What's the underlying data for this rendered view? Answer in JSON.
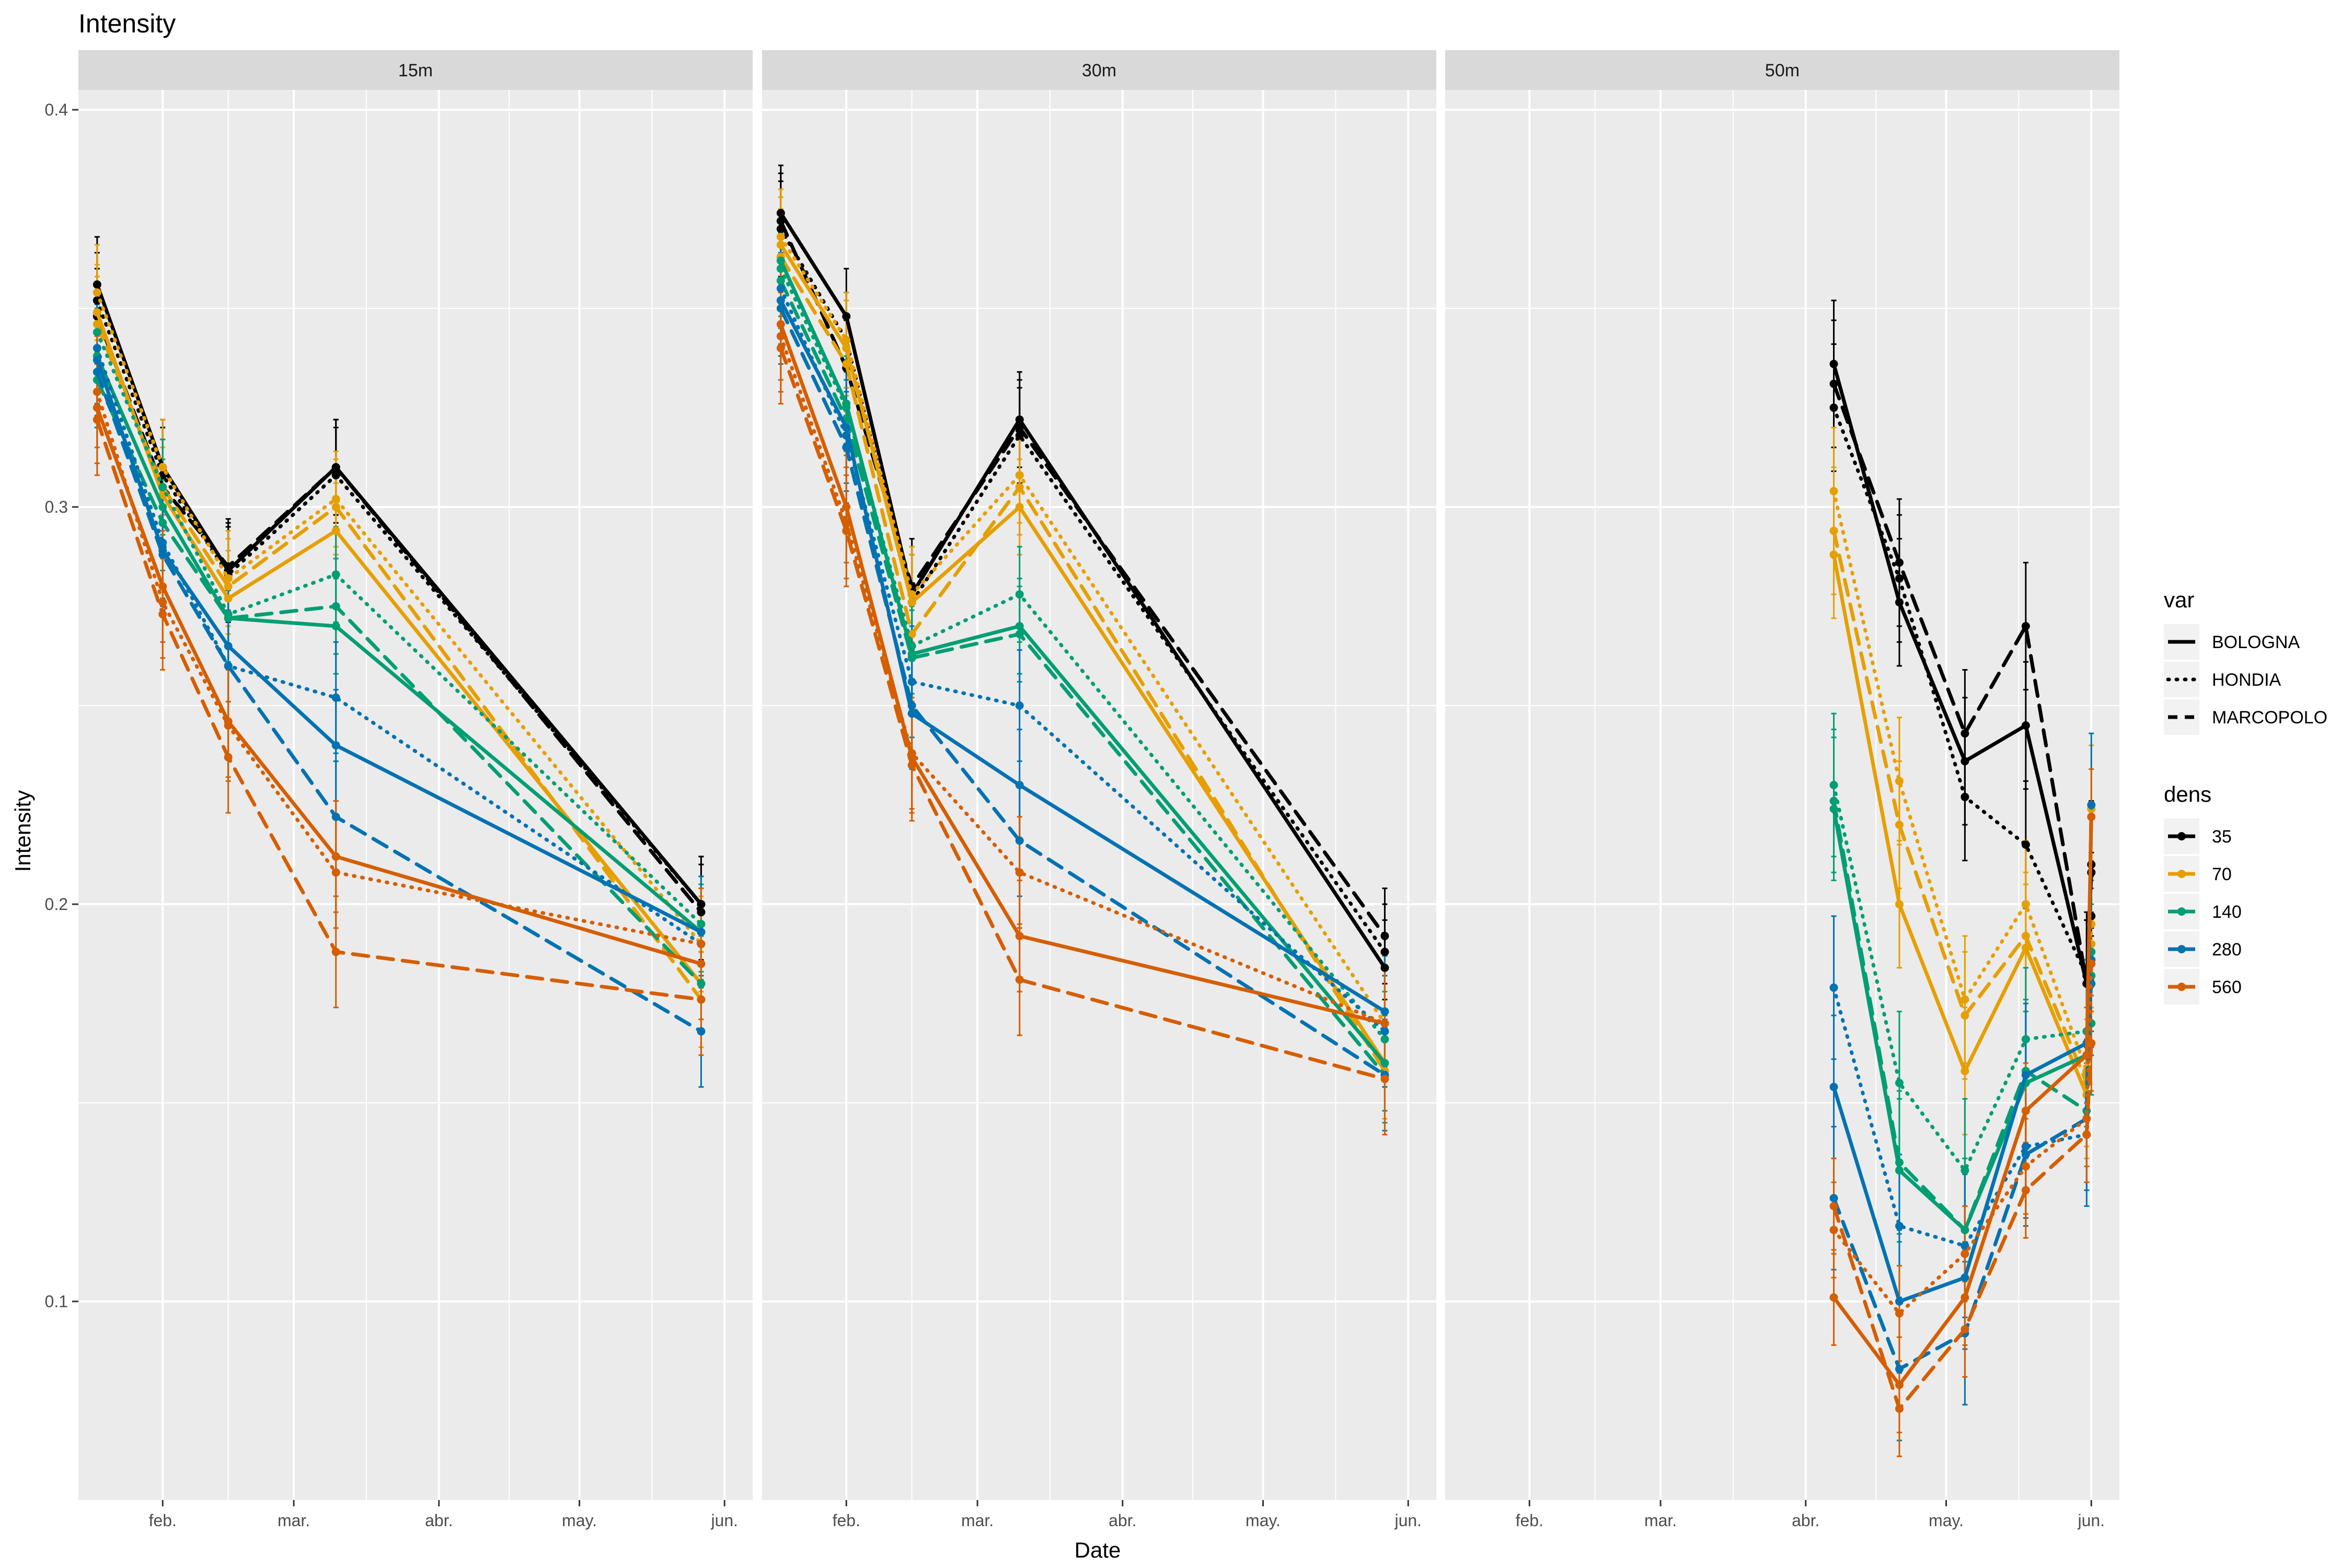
{
  "chart_data": {
    "type": "line",
    "title": "Intensity",
    "xlabel": "Date",
    "ylabel": "Intensity",
    "ylim": [
      0.05,
      0.405
    ],
    "yticks": [
      0.1,
      0.2,
      0.3,
      0.4
    ],
    "ytick_labels": [
      "0.1",
      "0.2",
      "0.3",
      "0.4"
    ],
    "xlim": [
      "2021-01-14",
      "2021-06-07"
    ],
    "xticks": [
      "2021-02-01",
      "2021-03-01",
      "2021-04-01",
      "2021-05-01",
      "2021-06-01"
    ],
    "xtick_labels": [
      "feb.",
      "mar.",
      "abr.",
      "may.",
      "jun."
    ],
    "grid": true,
    "legend": {
      "placement": "right",
      "var_title": "var",
      "var_entries": [
        {
          "label": "BOLOGNA",
          "dash": "solid"
        },
        {
          "label": "HONDIA",
          "dash": "dotted"
        },
        {
          "label": "MARCOPOLO",
          "dash": "dashed"
        }
      ],
      "dens_title": "dens",
      "dens_entries": [
        {
          "label": "35",
          "color": "#000000"
        },
        {
          "label": "70",
          "color": "#E69F00"
        },
        {
          "label": "140",
          "color": "#009E73"
        },
        {
          "label": "280",
          "color": "#0072B2"
        },
        {
          "label": "560",
          "color": "#D55E00"
        }
      ]
    },
    "facets": [
      {
        "label": "15m",
        "dates": [
          "2021-01-18",
          "2021-02-01",
          "2021-02-15",
          "2021-03-10",
          "2021-05-27"
        ],
        "series": [
          {
            "var": "BOLOGNA",
            "dens": "35",
            "values": [
              0.356,
              0.31,
              0.284,
              0.31,
              0.2
            ],
            "err": 0.012
          },
          {
            "var": "HONDIA",
            "dens": "35",
            "values": [
              0.352,
              0.308,
              0.283,
              0.308,
              0.2
            ],
            "err": 0.012
          },
          {
            "var": "MARCOPOLO",
            "dens": "35",
            "values": [
              0.348,
              0.305,
              0.285,
              0.31,
              0.198
            ],
            "err": 0.012
          },
          {
            "var": "BOLOGNA",
            "dens": "70",
            "values": [
              0.349,
              0.303,
              0.277,
              0.294,
              0.18
            ],
            "err": 0.012
          },
          {
            "var": "HONDIA",
            "dens": "70",
            "values": [
              0.354,
              0.31,
              0.282,
              0.302,
              0.19
            ],
            "err": 0.012
          },
          {
            "var": "MARCOPOLO",
            "dens": "70",
            "values": [
              0.346,
              0.305,
              0.28,
              0.3,
              0.176
            ],
            "err": 0.012
          },
          {
            "var": "BOLOGNA",
            "dens": "140",
            "values": [
              0.338,
              0.3,
              0.272,
              0.27,
              0.193
            ],
            "err": 0.012
          },
          {
            "var": "HONDIA",
            "dens": "140",
            "values": [
              0.344,
              0.305,
              0.273,
              0.283,
              0.195
            ],
            "err": 0.012
          },
          {
            "var": "MARCOPOLO",
            "dens": "140",
            "values": [
              0.332,
              0.296,
              0.272,
              0.275,
              0.18
            ],
            "err": 0.012
          },
          {
            "var": "BOLOGNA",
            "dens": "280",
            "values": [
              0.337,
              0.289,
              0.265,
              0.24,
              0.193
            ],
            "err": 0.014
          },
          {
            "var": "HONDIA",
            "dens": "280",
            "values": [
              0.34,
              0.291,
              0.26,
              0.252,
              0.19
            ],
            "err": 0.014
          },
          {
            "var": "MARCOPOLO",
            "dens": "280",
            "values": [
              0.334,
              0.288,
              0.26,
              0.222,
              0.168
            ],
            "err": 0.014
          },
          {
            "var": "BOLOGNA",
            "dens": "560",
            "values": [
              0.325,
              0.28,
              0.246,
              0.212,
              0.185
            ],
            "err": 0.014
          },
          {
            "var": "HONDIA",
            "dens": "560",
            "values": [
              0.329,
              0.276,
              0.245,
              0.208,
              0.19
            ],
            "err": 0.014
          },
          {
            "var": "MARCOPOLO",
            "dens": "560",
            "values": [
              0.322,
              0.273,
              0.237,
              0.188,
              0.176
            ],
            "err": 0.014
          }
        ]
      },
      {
        "label": "30m",
        "dates": [
          "2021-01-18",
          "2021-02-01",
          "2021-02-15",
          "2021-03-10",
          "2021-05-27"
        ],
        "series": [
          {
            "var": "BOLOGNA",
            "dens": "35",
            "values": [
              0.374,
              0.348,
              0.278,
              0.322,
              0.184
            ],
            "err": 0.012
          },
          {
            "var": "HONDIA",
            "dens": "35",
            "values": [
              0.37,
              0.342,
              0.276,
              0.318,
              0.188
            ],
            "err": 0.012
          },
          {
            "var": "MARCOPOLO",
            "dens": "35",
            "values": [
              0.372,
              0.335,
              0.28,
              0.32,
              0.192
            ],
            "err": 0.012
          },
          {
            "var": "BOLOGNA",
            "dens": "70",
            "values": [
              0.366,
              0.34,
              0.276,
              0.3,
              0.16
            ],
            "err": 0.012
          },
          {
            "var": "HONDIA",
            "dens": "70",
            "values": [
              0.368,
              0.342,
              0.278,
              0.308,
              0.17
            ],
            "err": 0.012
          },
          {
            "var": "MARCOPOLO",
            "dens": "70",
            "values": [
              0.363,
              0.336,
              0.268,
              0.305,
              0.158
            ],
            "err": 0.012
          },
          {
            "var": "BOLOGNA",
            "dens": "140",
            "values": [
              0.362,
              0.326,
              0.263,
              0.27,
              0.16
            ],
            "err": 0.012
          },
          {
            "var": "HONDIA",
            "dens": "140",
            "values": [
              0.36,
              0.325,
              0.265,
              0.278,
              0.166
            ],
            "err": 0.012
          },
          {
            "var": "MARCOPOLO",
            "dens": "140",
            "values": [
              0.357,
              0.322,
              0.262,
              0.268,
              0.157
            ],
            "err": 0.012
          },
          {
            "var": "BOLOGNA",
            "dens": "280",
            "values": [
              0.352,
              0.32,
              0.248,
              0.23,
              0.173
            ],
            "err": 0.014
          },
          {
            "var": "HONDIA",
            "dens": "280",
            "values": [
              0.355,
              0.318,
              0.256,
              0.25,
              0.168
            ],
            "err": 0.014
          },
          {
            "var": "MARCOPOLO",
            "dens": "280",
            "values": [
              0.35,
              0.315,
              0.25,
              0.216,
              0.157
            ],
            "err": 0.014
          },
          {
            "var": "BOLOGNA",
            "dens": "560",
            "values": [
              0.346,
              0.3,
              0.237,
              0.192,
              0.17
            ],
            "err": 0.014
          },
          {
            "var": "HONDIA",
            "dens": "560",
            "values": [
              0.343,
              0.296,
              0.238,
              0.208,
              0.17
            ],
            "err": 0.014
          },
          {
            "var": "MARCOPOLO",
            "dens": "560",
            "values": [
              0.34,
              0.294,
              0.235,
              0.181,
              0.156
            ],
            "err": 0.014
          }
        ]
      },
      {
        "label": "50m",
        "dates": [
          "2021-04-07",
          "2021-04-21",
          "2021-05-05",
          "2021-05-18",
          "2021-05-31",
          "2021-06-01"
        ],
        "series": [
          {
            "var": "BOLOGNA",
            "dens": "35",
            "values": [
              0.336,
              0.276,
              0.236,
              0.245,
              0.18,
              0.21
            ],
            "err": 0.016
          },
          {
            "var": "HONDIA",
            "dens": "35",
            "values": [
              0.325,
              0.282,
              0.227,
              0.215,
              0.182,
              0.197
            ],
            "err": 0.016
          },
          {
            "var": "MARCOPOLO",
            "dens": "35",
            "values": [
              0.331,
              0.286,
              0.243,
              0.27,
              0.18,
              0.208
            ],
            "err": 0.016
          },
          {
            "var": "BOLOGNA",
            "dens": "70",
            "values": [
              0.288,
              0.2,
              0.158,
              0.189,
              0.152,
              0.19
            ],
            "err": 0.016
          },
          {
            "var": "HONDIA",
            "dens": "70",
            "values": [
              0.304,
              0.231,
              0.176,
              0.2,
              0.158,
              0.195
            ],
            "err": 0.016
          },
          {
            "var": "MARCOPOLO",
            "dens": "70",
            "values": [
              0.294,
              0.22,
              0.172,
              0.192,
              0.155,
              0.224
            ],
            "err": 0.016
          },
          {
            "var": "BOLOGNA",
            "dens": "140",
            "values": [
              0.224,
              0.133,
              0.118,
              0.155,
              0.162,
              0.182
            ],
            "err": 0.018
          },
          {
            "var": "HONDIA",
            "dens": "140",
            "values": [
              0.23,
              0.155,
              0.133,
              0.166,
              0.168,
              0.17
            ],
            "err": 0.018
          },
          {
            "var": "MARCOPOLO",
            "dens": "140",
            "values": [
              0.226,
              0.135,
              0.118,
              0.158,
              0.148,
              0.188
            ],
            "err": 0.018
          },
          {
            "var": "BOLOGNA",
            "dens": "280",
            "values": [
              0.154,
              0.1,
              0.106,
              0.157,
              0.165,
              0.18
            ],
            "err": 0.018
          },
          {
            "var": "HONDIA",
            "dens": "280",
            "values": [
              0.179,
              0.119,
              0.114,
              0.139,
              0.142,
              0.186
            ],
            "err": 0.018
          },
          {
            "var": "MARCOPOLO",
            "dens": "280",
            "values": [
              0.126,
              0.083,
              0.092,
              0.137,
              0.146,
              0.225
            ],
            "err": 0.018
          },
          {
            "var": "BOLOGNA",
            "dens": "560",
            "values": [
              0.101,
              0.079,
              0.101,
              0.148,
              0.162,
              0.222
            ],
            "err": 0.012
          },
          {
            "var": "HONDIA",
            "dens": "560",
            "values": [
              0.118,
              0.097,
              0.112,
              0.134,
              0.146,
              0.185
            ],
            "err": 0.012
          },
          {
            "var": "MARCOPOLO",
            "dens": "560",
            "values": [
              0.124,
              0.073,
              0.093,
              0.128,
              0.142,
              0.165
            ],
            "err": 0.012
          }
        ]
      }
    ]
  }
}
